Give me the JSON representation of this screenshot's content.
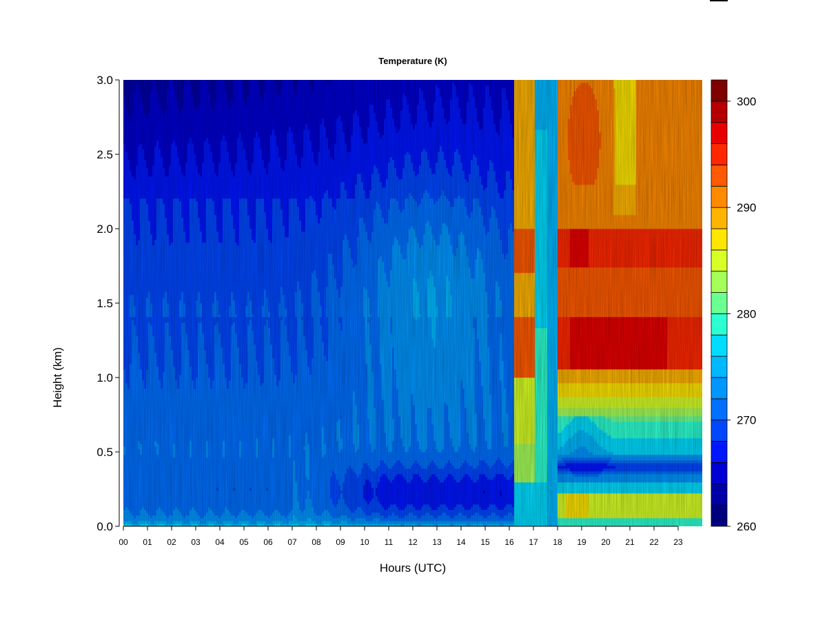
{
  "chart_data": {
    "type": "heatmap",
    "title": "Temperature (K)",
    "xlabel": "Hours (UTC)",
    "ylabel": "Height (km)",
    "x_ticks": [
      "00",
      "01",
      "02",
      "03",
      "04",
      "05",
      "06",
      "07",
      "08",
      "09",
      "10",
      "11",
      "12",
      "13",
      "14",
      "15",
      "16",
      "17",
      "18",
      "19",
      "20",
      "21",
      "22",
      "23"
    ],
    "y_ticks": [
      "0.0",
      "0.5",
      "1.0",
      "1.5",
      "2.0",
      "2.5",
      "3.0"
    ],
    "xlim": [
      0,
      24
    ],
    "ylim": [
      0,
      3.0
    ],
    "colorbar": {
      "range": [
        260,
        302
      ],
      "step": 2,
      "tick_values": [
        260,
        270,
        280,
        290,
        300
      ],
      "tick_labels": [
        "260",
        "270",
        "280",
        "290",
        "300"
      ]
    },
    "grid": false,
    "field_summary": [
      {
        "hours": [
          0,
          16.2
        ],
        "description_values_K": {
          "surface_0km": 276,
          "0.2km_near_13h": 264,
          "1.0km": 271,
          "2.0km": 270,
          "3.0km": 264
        }
      },
      {
        "hours": [
          16.2,
          18.0
        ],
        "description_values_K": {
          "surface_0km": 274,
          "1.2km": 294,
          "2.0km": 291,
          "3.0km": 287
        }
      },
      {
        "hours": [
          18.0,
          24.0
        ],
        "description_values_K": {
          "0.1km": 286,
          "0.4km": 266,
          "1.2km": 297,
          "1.9km": 296,
          "3.0km": 290
        }
      }
    ]
  }
}
